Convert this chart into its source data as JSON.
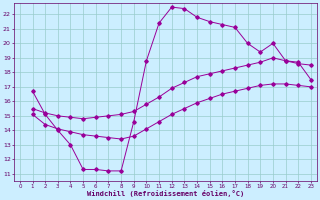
{
  "xlabel": "Windchill (Refroidissement éolien,°C)",
  "bg_color": "#cceeff",
  "grid_color": "#99cccc",
  "line_color": "#990099",
  "xlim": [
    -0.5,
    23.5
  ],
  "ylim": [
    10.5,
    22.8
  ],
  "xticks": [
    0,
    1,
    2,
    3,
    4,
    5,
    6,
    7,
    8,
    9,
    10,
    11,
    12,
    13,
    14,
    15,
    16,
    17,
    18,
    19,
    20,
    21,
    22,
    23
  ],
  "yticks": [
    11,
    12,
    13,
    14,
    15,
    16,
    17,
    18,
    19,
    20,
    21,
    22
  ],
  "curve1_x": [
    1,
    2,
    3,
    4,
    5,
    6,
    7,
    8,
    9,
    10,
    11,
    12,
    13,
    14,
    15,
    16,
    17,
    18,
    19,
    20,
    21,
    22,
    23
  ],
  "curve1_y": [
    16.7,
    15.1,
    14.0,
    13.0,
    11.3,
    11.3,
    11.2,
    11.2,
    14.6,
    18.8,
    21.4,
    22.5,
    22.4,
    21.8,
    21.5,
    21.3,
    21.1,
    20.0,
    19.4,
    20.0,
    18.8,
    18.7,
    17.5
  ],
  "curve2_x": [
    1,
    2,
    3,
    4,
    5,
    6,
    7,
    8,
    9,
    10,
    11,
    12,
    13,
    14,
    15,
    16,
    17,
    18,
    19,
    20,
    21,
    22,
    23
  ],
  "curve2_y": [
    15.5,
    15.2,
    15.0,
    14.9,
    14.8,
    14.9,
    15.0,
    15.1,
    15.3,
    15.8,
    16.3,
    16.9,
    17.3,
    17.7,
    17.9,
    18.1,
    18.3,
    18.5,
    18.7,
    19.0,
    18.8,
    18.6,
    18.5
  ],
  "curve3_x": [
    1,
    2,
    3,
    4,
    5,
    6,
    7,
    8,
    9,
    10,
    11,
    12,
    13,
    14,
    15,
    16,
    17,
    18,
    19,
    20,
    21,
    22,
    23
  ],
  "curve3_y": [
    15.1,
    14.4,
    14.1,
    13.9,
    13.7,
    13.6,
    13.5,
    13.4,
    13.6,
    14.1,
    14.6,
    15.1,
    15.5,
    15.9,
    16.2,
    16.5,
    16.7,
    16.9,
    17.1,
    17.2,
    17.2,
    17.1,
    17.0
  ]
}
